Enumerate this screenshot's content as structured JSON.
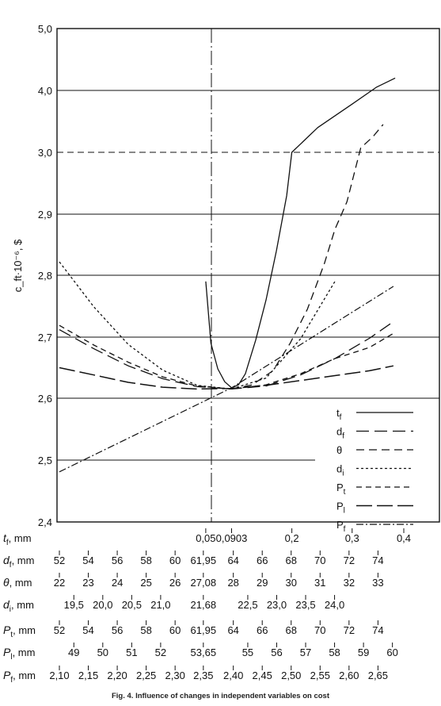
{
  "caption": "Fig. 4. Influence of changes in independent variables on cost",
  "chart_data": {
    "type": "line",
    "ylabel": "c_ft·10⁻⁶, $",
    "yticks": [
      "5,0",
      "4,0",
      "3,0",
      "2,9",
      "2,8",
      "2,7",
      "2,6",
      "2,5",
      "2,4"
    ],
    "ylim": [
      2.4,
      5.0
    ],
    "y_axis_note": "broken scale: 2,4–2,9 linear in steps of 0,1; then 3,0, 4,0, 5,0",
    "x_normalized_range": [
      0,
      1
    ],
    "reference_vertical_line": "0,0903",
    "grid": true,
    "legend_position": "right",
    "x_axes": [
      {
        "label": "t",
        "sub": "f",
        "unit": ", mm",
        "ticks": [
          {
            "t": "0,05",
            "x": 0.425
          },
          {
            "t": "0,0903",
            "x": 0.5
          },
          {
            "t": "0,2",
            "x": 0.675
          },
          {
            "t": "0,3",
            "x": 0.85
          },
          {
            "t": "0,4",
            "x": 1.0
          }
        ]
      },
      {
        "label": "d",
        "sub": "f",
        "unit": ", mm",
        "ticks": [
          {
            "t": "52",
            "x": 0.0
          },
          {
            "t": "54",
            "x": 0.084
          },
          {
            "t": "56",
            "x": 0.168
          },
          {
            "t": "58",
            "x": 0.252
          },
          {
            "t": "60",
            "x": 0.336
          },
          {
            "t": "61,95",
            "x": 0.418
          },
          {
            "t": "64",
            "x": 0.505
          },
          {
            "t": "66",
            "x": 0.589
          },
          {
            "t": "68",
            "x": 0.673
          },
          {
            "t": "70",
            "x": 0.757
          },
          {
            "t": "72",
            "x": 0.841
          },
          {
            "t": "74",
            "x": 0.925
          }
        ]
      },
      {
        "label": "θ",
        "sub": "",
        "unit": ", mm",
        "ticks": [
          {
            "t": "22",
            "x": 0.0
          },
          {
            "t": "23",
            "x": 0.084
          },
          {
            "t": "24",
            "x": 0.168
          },
          {
            "t": "25",
            "x": 0.252
          },
          {
            "t": "26",
            "x": 0.336
          },
          {
            "t": "27,08",
            "x": 0.418
          },
          {
            "t": "28",
            "x": 0.505
          },
          {
            "t": "29",
            "x": 0.589
          },
          {
            "t": "30",
            "x": 0.673
          },
          {
            "t": "31",
            "x": 0.757
          },
          {
            "t": "32",
            "x": 0.841
          },
          {
            "t": "33",
            "x": 0.925
          }
        ]
      },
      {
        "label": "d",
        "sub": "i",
        "unit": ", mm",
        "ticks": [
          {
            "t": "19,5",
            "x": 0.042
          },
          {
            "t": "20,0",
            "x": 0.126
          },
          {
            "t": "20,5",
            "x": 0.21
          },
          {
            "t": "21,0",
            "x": 0.294
          },
          {
            "t": "21,68",
            "x": 0.418
          },
          {
            "t": "22,5",
            "x": 0.547
          },
          {
            "t": "23,0",
            "x": 0.631
          },
          {
            "t": "23,5",
            "x": 0.715
          },
          {
            "t": "24,0",
            "x": 0.799
          }
        ]
      },
      {
        "label": "P",
        "sub": "t",
        "unit": ", mm",
        "ticks": [
          {
            "t": "52",
            "x": 0.0
          },
          {
            "t": "54",
            "x": 0.084
          },
          {
            "t": "56",
            "x": 0.168
          },
          {
            "t": "58",
            "x": 0.252
          },
          {
            "t": "60",
            "x": 0.336
          },
          {
            "t": "61,95",
            "x": 0.418
          },
          {
            "t": "64",
            "x": 0.505
          },
          {
            "t": "66",
            "x": 0.589
          },
          {
            "t": "68",
            "x": 0.673
          },
          {
            "t": "70",
            "x": 0.757
          },
          {
            "t": "72",
            "x": 0.841
          },
          {
            "t": "74",
            "x": 0.925
          }
        ]
      },
      {
        "label": "P",
        "sub": "l",
        "unit": ", mm",
        "ticks": [
          {
            "t": "49",
            "x": 0.042
          },
          {
            "t": "50",
            "x": 0.126
          },
          {
            "t": "51",
            "x": 0.21
          },
          {
            "t": "52",
            "x": 0.294
          },
          {
            "t": "53,65",
            "x": 0.418
          },
          {
            "t": "55",
            "x": 0.547
          },
          {
            "t": "56",
            "x": 0.631
          },
          {
            "t": "57",
            "x": 0.715
          },
          {
            "t": "58",
            "x": 0.799
          },
          {
            "t": "59",
            "x": 0.883
          },
          {
            "t": "60",
            "x": 0.967
          }
        ]
      },
      {
        "label": "P",
        "sub": "f",
        "unit": ", mm",
        "ticks": [
          {
            "t": "2,10",
            "x": 0.0
          },
          {
            "t": "2,15",
            "x": 0.084
          },
          {
            "t": "2,20",
            "x": 0.168
          },
          {
            "t": "2,25",
            "x": 0.252
          },
          {
            "t": "2,30",
            "x": 0.336
          },
          {
            "t": "2,35",
            "x": 0.418
          },
          {
            "t": "2,40",
            "x": 0.505
          },
          {
            "t": "2,45",
            "x": 0.589
          },
          {
            "t": "2,50",
            "x": 0.673
          },
          {
            "t": "2,55",
            "x": 0.757
          },
          {
            "t": "2,60",
            "x": 0.841
          },
          {
            "t": "2,65",
            "x": 0.925
          }
        ]
      }
    ],
    "series": [
      {
        "name": "t",
        "sub": "f",
        "dash": "",
        "width": 1.3,
        "points": [
          [
            0.425,
            2.79
          ],
          [
            0.44,
            2.69
          ],
          [
            0.46,
            2.648
          ],
          [
            0.48,
            2.627
          ],
          [
            0.5,
            2.617
          ],
          [
            0.52,
            2.622
          ],
          [
            0.54,
            2.64
          ],
          [
            0.57,
            2.695
          ],
          [
            0.6,
            2.76
          ],
          [
            0.63,
            2.84
          ],
          [
            0.66,
            2.93
          ],
          [
            0.675,
            3.0
          ],
          [
            0.75,
            3.4
          ],
          [
            0.85,
            3.78
          ],
          [
            0.92,
            4.05
          ],
          [
            0.975,
            4.2
          ]
        ]
      },
      {
        "name": "d",
        "sub": "f",
        "dash": "16 7",
        "width": 1.3,
        "points": [
          [
            0.0,
            2.712
          ],
          [
            0.1,
            2.681
          ],
          [
            0.2,
            2.653
          ],
          [
            0.3,
            2.632
          ],
          [
            0.4,
            2.619
          ],
          [
            0.5,
            2.615
          ],
          [
            0.6,
            2.62
          ],
          [
            0.7,
            2.638
          ],
          [
            0.8,
            2.665
          ],
          [
            0.9,
            2.698
          ],
          [
            0.97,
            2.725
          ]
        ]
      },
      {
        "name": "θ",
        "sub": "",
        "dash": "10 6",
        "width": 1.3,
        "points": [
          [
            0.5,
            2.615
          ],
          [
            0.56,
            2.622
          ],
          [
            0.62,
            2.645
          ],
          [
            0.67,
            2.69
          ],
          [
            0.72,
            2.745
          ],
          [
            0.77,
            2.82
          ],
          [
            0.8,
            2.875
          ],
          [
            0.835,
            2.92
          ],
          [
            0.875,
            3.07
          ],
          [
            0.91,
            3.25
          ],
          [
            0.94,
            3.45
          ]
        ]
      },
      {
        "name": "d",
        "sub": "i",
        "dash": "3 3",
        "width": 1.3,
        "points": [
          [
            0.0,
            2.822
          ],
          [
            0.1,
            2.749
          ],
          [
            0.2,
            2.688
          ],
          [
            0.3,
            2.646
          ],
          [
            0.4,
            2.621
          ],
          [
            0.5,
            2.615
          ],
          [
            0.6,
            2.633
          ],
          [
            0.7,
            2.697
          ],
          [
            0.8,
            2.79
          ]
        ]
      },
      {
        "name": "P",
        "sub": "t",
        "dash": "7 5",
        "width": 1.3,
        "points": [
          [
            0.0,
            2.719
          ],
          [
            0.1,
            2.687
          ],
          [
            0.2,
            2.659
          ],
          [
            0.3,
            2.635
          ],
          [
            0.4,
            2.62
          ],
          [
            0.5,
            2.615
          ],
          [
            0.6,
            2.622
          ],
          [
            0.7,
            2.64
          ],
          [
            0.8,
            2.665
          ],
          [
            0.9,
            2.683
          ],
          [
            0.97,
            2.706
          ]
        ]
      },
      {
        "name": "P",
        "sub": "l",
        "dash": "20 6",
        "width": 1.5,
        "points": [
          [
            0.0,
            2.65
          ],
          [
            0.1,
            2.638
          ],
          [
            0.2,
            2.626
          ],
          [
            0.3,
            2.618
          ],
          [
            0.4,
            2.615
          ],
          [
            0.5,
            2.616
          ],
          [
            0.6,
            2.621
          ],
          [
            0.7,
            2.629
          ],
          [
            0.8,
            2.637
          ],
          [
            0.9,
            2.645
          ],
          [
            0.97,
            2.653
          ]
        ]
      },
      {
        "name": "P",
        "sub": "f",
        "dash": "9 3 2 3",
        "width": 1.2,
        "points": [
          [
            0.0,
            2.481
          ],
          [
            0.5,
            2.617
          ],
          [
            0.97,
            2.782
          ]
        ]
      }
    ]
  }
}
